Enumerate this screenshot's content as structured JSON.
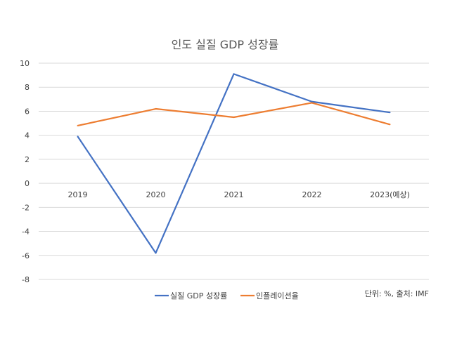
{
  "chart_data": {
    "type": "line",
    "title": "인도 실질 GDP 성장률",
    "categories": [
      "2019",
      "2020",
      "2021",
      "2022",
      "2023(예상)"
    ],
    "series": [
      {
        "name": "실질 GDP 성장률",
        "color": "#4472C4",
        "values": [
          3.9,
          -5.8,
          9.1,
          6.8,
          5.9
        ]
      },
      {
        "name": "인플레이션율",
        "color": "#ED7D31",
        "values": [
          4.8,
          6.2,
          5.5,
          6.7,
          4.9
        ]
      }
    ],
    "ylim": [
      -8,
      10
    ],
    "yticks": [
      10,
      8,
      6,
      4,
      2,
      0,
      -2,
      -4,
      -6,
      -8
    ],
    "grid": true,
    "legend": "bottom",
    "note": "단위: %, 출처: IMF",
    "xlabel": "",
    "ylabel": ""
  }
}
